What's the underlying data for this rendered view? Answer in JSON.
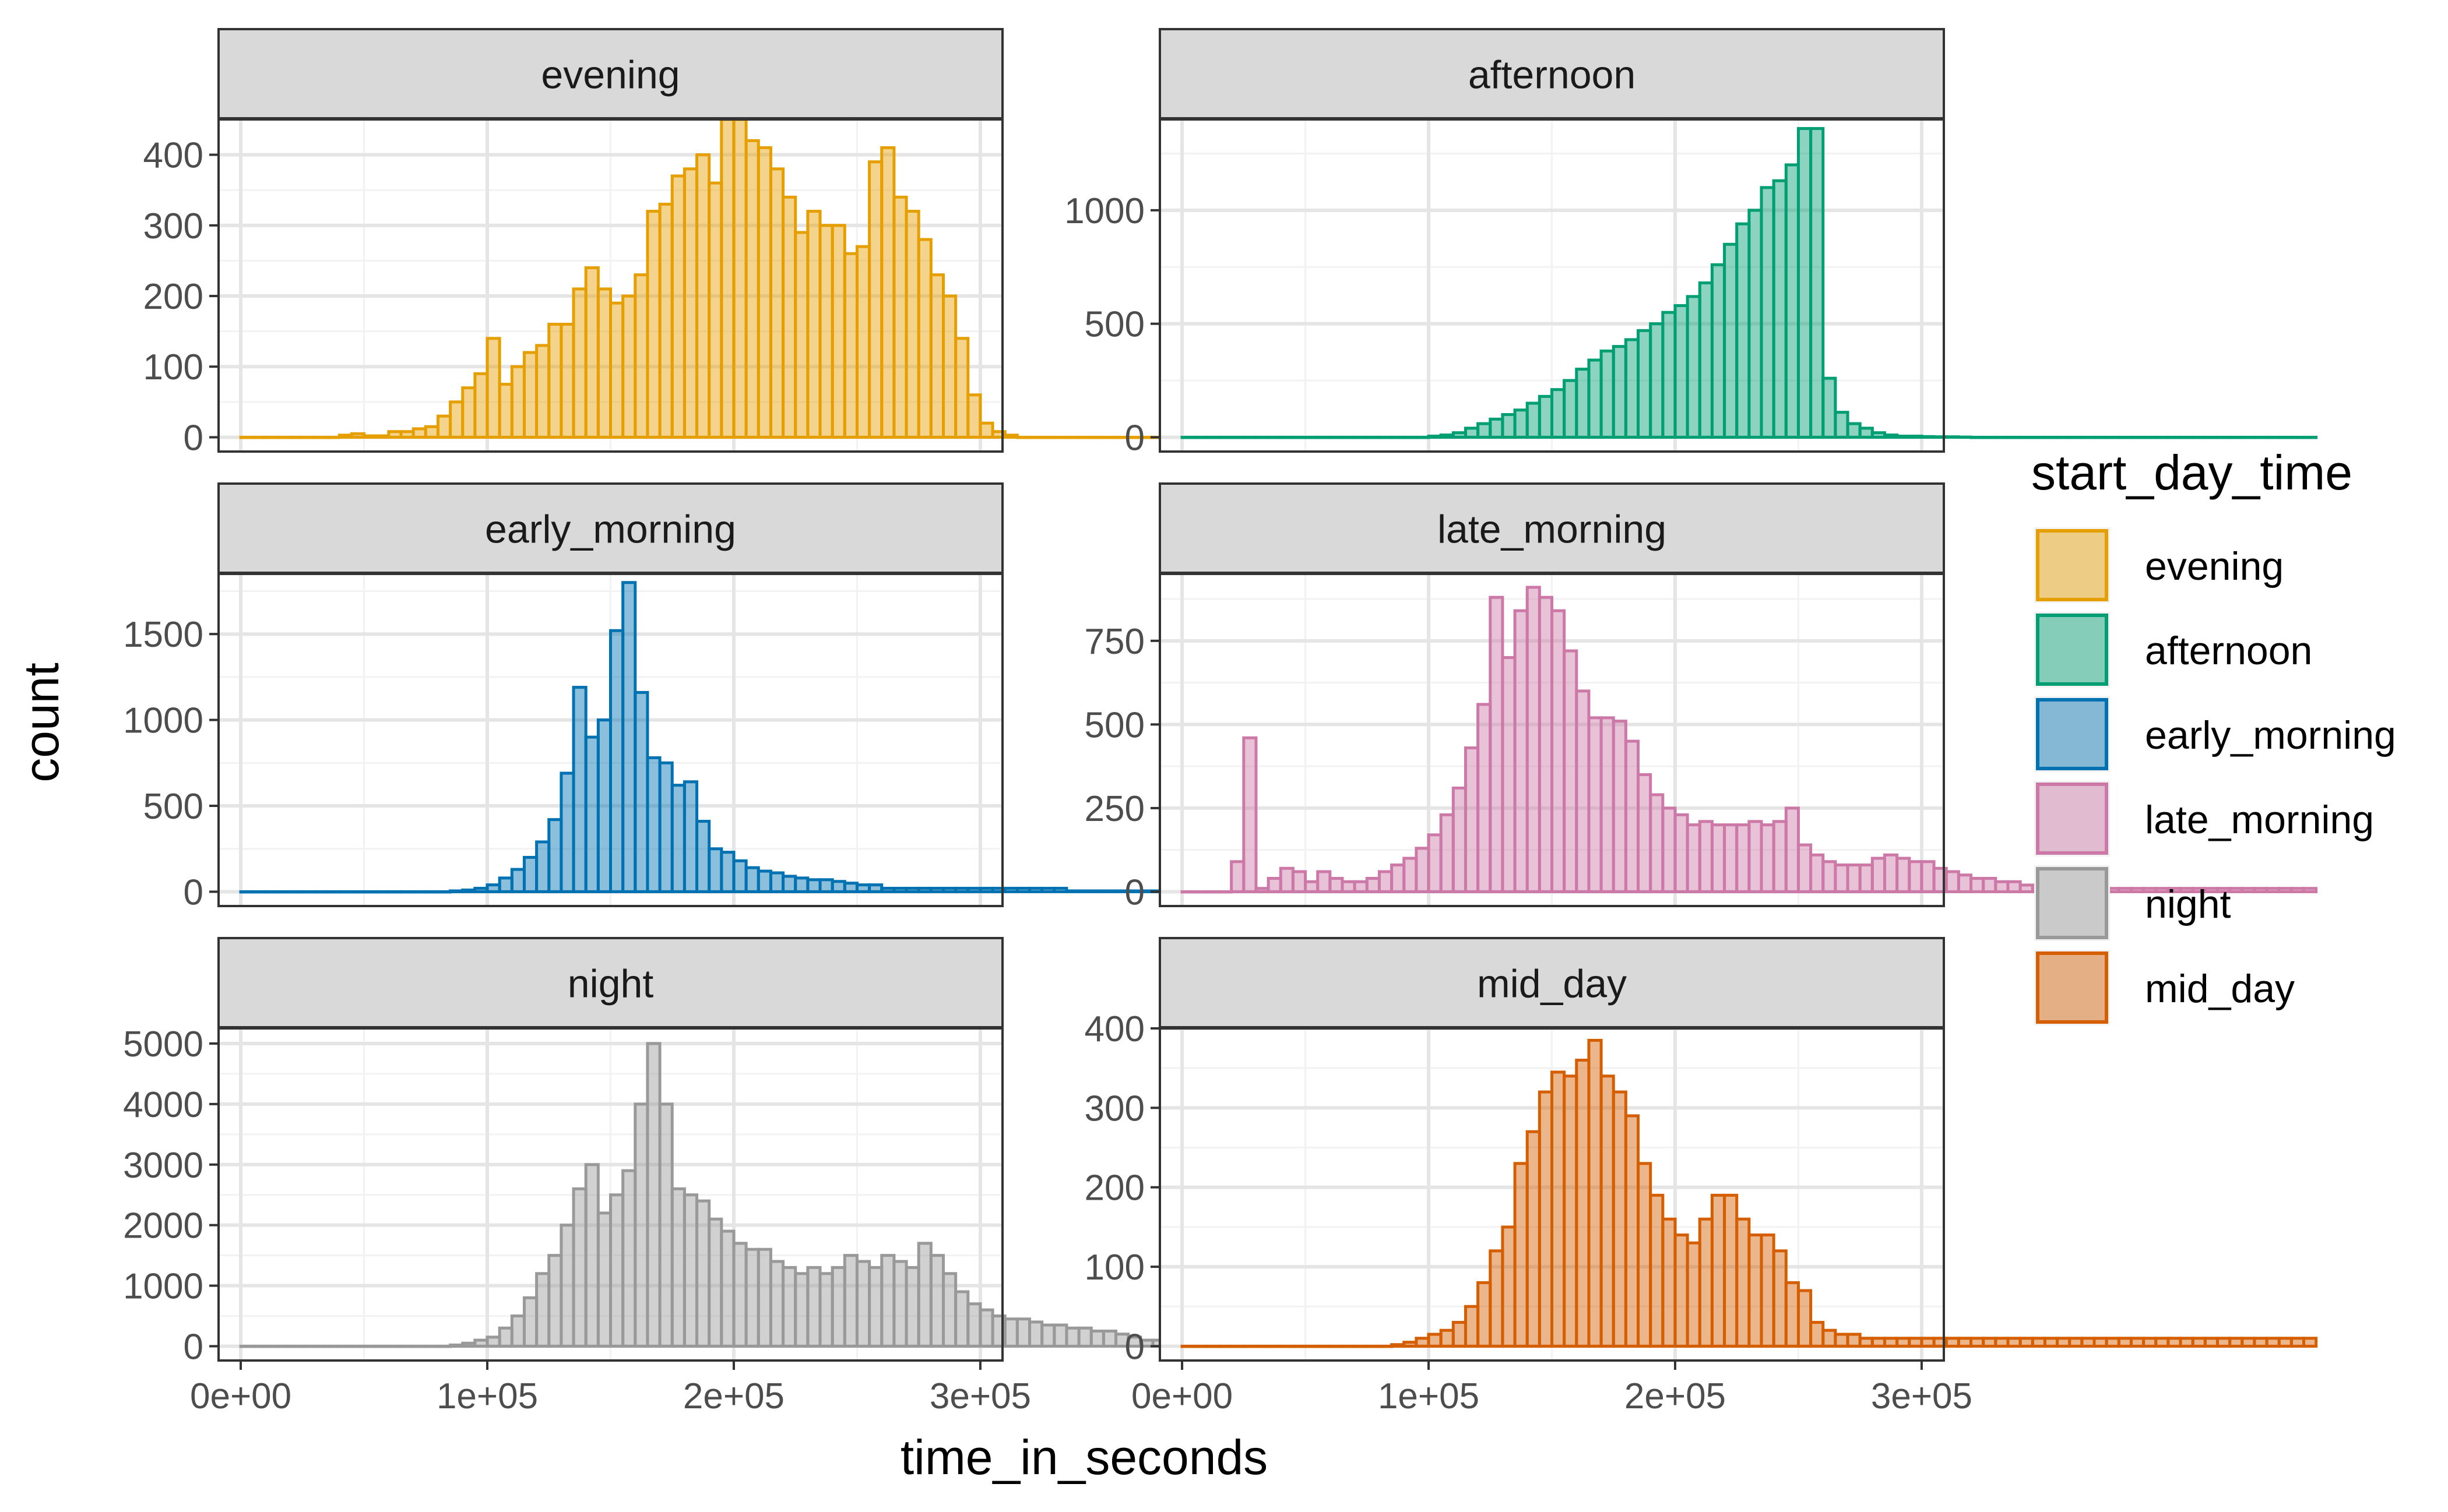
{
  "chart_data": {
    "type": "bar",
    "subtype": "faceted-histogram",
    "xlabel": "time_in_seconds",
    "ylabel": "count",
    "xlim": [
      0,
      300000
    ],
    "x_ticks": [
      0,
      100000,
      200000,
      300000
    ],
    "x_tick_labels": [
      "0e+00",
      "1e+05",
      "2e+05",
      "3e+05"
    ],
    "grid": true,
    "legend": {
      "title": "start_day_time",
      "position": "right",
      "items": [
        {
          "label": "evening",
          "color": "#E69F00"
        },
        {
          "label": "afternoon",
          "color": "#009E73"
        },
        {
          "label": "early_morning",
          "color": "#0072B2"
        },
        {
          "label": "late_morning",
          "color": "#CC79A7"
        },
        {
          "label": "night",
          "color": "#999999"
        },
        {
          "label": "mid_day",
          "color": "#D55E00"
        }
      ]
    },
    "bin_start": 0,
    "bin_width": 5000,
    "panels": [
      {
        "name": "evening",
        "color": "#E69F00",
        "ylim": [
          0,
          450
        ],
        "y_ticks": [
          0,
          100,
          200,
          300,
          400
        ],
        "counts": [
          0,
          0,
          0,
          0,
          0,
          0,
          0,
          0,
          3,
          5,
          2,
          2,
          8,
          8,
          12,
          15,
          30,
          50,
          70,
          90,
          140,
          75,
          100,
          120,
          130,
          160,
          160,
          210,
          240,
          210,
          190,
          200,
          230,
          320,
          330,
          370,
          380,
          400,
          360,
          450,
          450,
          420,
          410,
          380,
          340,
          290,
          320,
          300,
          300,
          260,
          270,
          390,
          410,
          340,
          320,
          280,
          230,
          200,
          140,
          60,
          20,
          8,
          3,
          0,
          0,
          0,
          0,
          0,
          0,
          0,
          0,
          0,
          0,
          0,
          0,
          0,
          0,
          0,
          0,
          0,
          0,
          0,
          0,
          0,
          0,
          0,
          0,
          0,
          0,
          0,
          0,
          0
        ]
      },
      {
        "name": "afternoon",
        "color": "#009E73",
        "ylim": [
          0,
          1400
        ],
        "y_ticks": [
          0,
          500,
          1000
        ],
        "counts": [
          0,
          0,
          0,
          0,
          0,
          0,
          0,
          0,
          0,
          0,
          0,
          0,
          0,
          0,
          0,
          0,
          0,
          0,
          0,
          0,
          5,
          10,
          20,
          40,
          60,
          80,
          100,
          120,
          150,
          180,
          210,
          250,
          300,
          340,
          380,
          400,
          430,
          470,
          500,
          550,
          580,
          620,
          680,
          760,
          850,
          940,
          1000,
          1100,
          1130,
          1200,
          1360,
          1360,
          260,
          110,
          60,
          40,
          20,
          10,
          5,
          5,
          3,
          2,
          2,
          1,
          0,
          0,
          0,
          0,
          0,
          0,
          0,
          0,
          0,
          0,
          0,
          0,
          0,
          0,
          0,
          0,
          0,
          0,
          0,
          0,
          0,
          0,
          0,
          0,
          0,
          0,
          0,
          0
        ]
      },
      {
        "name": "early_morning",
        "color": "#0072B2",
        "ylim": [
          0,
          1850
        ],
        "y_ticks": [
          0,
          500,
          1000,
          1500
        ],
        "counts": [
          0,
          0,
          0,
          0,
          0,
          0,
          0,
          0,
          0,
          0,
          0,
          0,
          0,
          0,
          0,
          0,
          0,
          5,
          10,
          20,
          40,
          80,
          130,
          200,
          290,
          420,
          690,
          1190,
          900,
          1000,
          1520,
          1800,
          1160,
          780,
          750,
          620,
          640,
          410,
          250,
          230,
          180,
          140,
          120,
          110,
          90,
          80,
          70,
          70,
          60,
          50,
          40,
          40,
          20,
          20,
          20,
          20,
          20,
          20,
          20,
          20,
          20,
          20,
          20,
          20,
          20,
          20,
          20,
          5,
          5,
          5,
          5,
          5,
          5,
          5,
          5,
          5,
          5,
          5,
          5,
          5,
          5,
          5,
          5,
          5,
          5,
          5,
          5,
          5,
          5,
          5,
          5,
          5
        ]
      },
      {
        "name": "late_morning",
        "color": "#CC79A7",
        "ylim": [
          0,
          950
        ],
        "y_ticks": [
          0,
          250,
          500,
          750
        ],
        "counts": [
          0,
          0,
          0,
          0,
          90,
          460,
          10,
          40,
          70,
          60,
          30,
          60,
          40,
          30,
          30,
          40,
          60,
          80,
          100,
          130,
          170,
          230,
          310,
          430,
          560,
          880,
          700,
          840,
          910,
          880,
          840,
          720,
          600,
          520,
          520,
          510,
          450,
          350,
          290,
          250,
          230,
          200,
          210,
          200,
          200,
          200,
          210,
          200,
          210,
          250,
          140,
          110,
          90,
          80,
          80,
          80,
          100,
          110,
          100,
          90,
          90,
          70,
          60,
          50,
          40,
          40,
          30,
          30,
          20,
          20,
          20,
          20,
          20,
          10,
          10,
          10,
          10,
          10,
          10,
          10,
          10,
          10,
          10,
          10,
          10,
          10,
          10,
          10,
          10,
          10,
          10,
          10
        ]
      },
      {
        "name": "night",
        "color": "#999999",
        "ylim": [
          0,
          5250
        ],
        "y_ticks": [
          0,
          1000,
          2000,
          3000,
          4000,
          5000
        ],
        "counts": [
          0,
          0,
          0,
          0,
          0,
          0,
          0,
          0,
          0,
          0,
          0,
          0,
          0,
          0,
          0,
          0,
          0,
          20,
          50,
          100,
          150,
          300,
          500,
          800,
          1200,
          1500,
          2000,
          2600,
          3000,
          2200,
          2500,
          2900,
          4000,
          5000,
          4000,
          2600,
          2500,
          2400,
          2100,
          1900,
          1700,
          1600,
          1600,
          1400,
          1300,
          1200,
          1300,
          1200,
          1300,
          1500,
          1400,
          1300,
          1500,
          1400,
          1300,
          1700,
          1500,
          1200,
          900,
          700,
          600,
          500,
          450,
          450,
          400,
          350,
          350,
          300,
          300,
          250,
          250,
          200,
          150,
          100,
          100,
          80,
          50,
          50,
          50,
          50,
          50,
          50,
          50,
          50,
          50,
          20,
          20,
          20,
          20,
          20,
          20,
          20
        ]
      },
      {
        "name": "mid_day",
        "color": "#D55E00",
        "ylim": [
          0,
          400
        ],
        "y_ticks": [
          0,
          100,
          200,
          300,
          400
        ],
        "counts": [
          0,
          0,
          0,
          0,
          0,
          0,
          0,
          0,
          0,
          0,
          0,
          0,
          0,
          0,
          0,
          0,
          0,
          2,
          5,
          10,
          15,
          20,
          30,
          50,
          80,
          120,
          150,
          230,
          270,
          320,
          345,
          340,
          360,
          385,
          340,
          320,
          290,
          230,
          190,
          160,
          140,
          130,
          160,
          190,
          190,
          160,
          140,
          140,
          120,
          80,
          70,
          30,
          20,
          15,
          15,
          10,
          10,
          10,
          10,
          10,
          10,
          10,
          10,
          10,
          10,
          10,
          10,
          10,
          10,
          10,
          10,
          10,
          10,
          10,
          10,
          10,
          10,
          10,
          10,
          10,
          10,
          10,
          10,
          10,
          10,
          10,
          10,
          10,
          10,
          10,
          10,
          10
        ]
      }
    ]
  }
}
